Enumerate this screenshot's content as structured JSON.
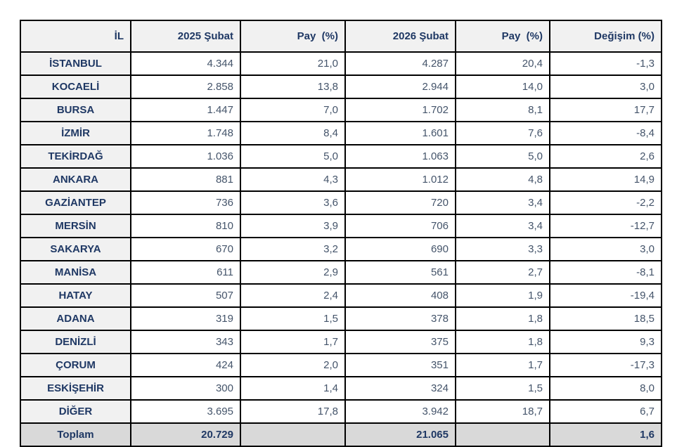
{
  "table": {
    "columns": [
      {
        "key": "il",
        "label": "İL"
      },
      {
        "key": "v2025",
        "label": "2025 Şubat"
      },
      {
        "key": "pay2025",
        "label": "Pay  (%)"
      },
      {
        "key": "v2026",
        "label": "2026 Şubat"
      },
      {
        "key": "pay2026",
        "label": "Pay  (%)"
      },
      {
        "key": "degisim",
        "label": "Değişim (%)"
      }
    ],
    "rows": [
      {
        "il": "İSTANBUL",
        "v2025": "4.344",
        "pay2025": "21,0",
        "v2026": "4.287",
        "pay2026": "20,4",
        "degisim": "-1,3"
      },
      {
        "il": "KOCAELİ",
        "v2025": "2.858",
        "pay2025": "13,8",
        "v2026": "2.944",
        "pay2026": "14,0",
        "degisim": "3,0"
      },
      {
        "il": "BURSA",
        "v2025": "1.447",
        "pay2025": "7,0",
        "v2026": "1.702",
        "pay2026": "8,1",
        "degisim": "17,7"
      },
      {
        "il": "İZMİR",
        "v2025": "1.748",
        "pay2025": "8,4",
        "v2026": "1.601",
        "pay2026": "7,6",
        "degisim": "-8,4"
      },
      {
        "il": "TEKİRDAĞ",
        "v2025": "1.036",
        "pay2025": "5,0",
        "v2026": "1.063",
        "pay2026": "5,0",
        "degisim": "2,6"
      },
      {
        "il": "ANKARA",
        "v2025": "881",
        "pay2025": "4,3",
        "v2026": "1.012",
        "pay2026": "4,8",
        "degisim": "14,9"
      },
      {
        "il": "GAZİANTEP",
        "v2025": "736",
        "pay2025": "3,6",
        "v2026": "720",
        "pay2026": "3,4",
        "degisim": "-2,2"
      },
      {
        "il": "MERSİN",
        "v2025": "810",
        "pay2025": "3,9",
        "v2026": "706",
        "pay2026": "3,4",
        "degisim": "-12,7"
      },
      {
        "il": "SAKARYA",
        "v2025": "670",
        "pay2025": "3,2",
        "v2026": "690",
        "pay2026": "3,3",
        "degisim": "3,0"
      },
      {
        "il": "MANİSA",
        "v2025": "611",
        "pay2025": "2,9",
        "v2026": "561",
        "pay2026": "2,7",
        "degisim": "-8,1"
      },
      {
        "il": "HATAY",
        "v2025": "507",
        "pay2025": "2,4",
        "v2026": "408",
        "pay2026": "1,9",
        "degisim": "-19,4"
      },
      {
        "il": "ADANA",
        "v2025": "319",
        "pay2025": "1,5",
        "v2026": "378",
        "pay2026": "1,8",
        "degisim": "18,5"
      },
      {
        "il": "DENİZLİ",
        "v2025": "343",
        "pay2025": "1,7",
        "v2026": "375",
        "pay2026": "1,8",
        "degisim": "9,3"
      },
      {
        "il": "ÇORUM",
        "v2025": "424",
        "pay2025": "2,0",
        "v2026": "351",
        "pay2026": "1,7",
        "degisim": "-17,3"
      },
      {
        "il": "ESKİŞEHİR",
        "v2025": "300",
        "pay2025": "1,4",
        "v2026": "324",
        "pay2026": "1,5",
        "degisim": "8,0"
      },
      {
        "il": "DİĞER",
        "v2025": "3.695",
        "pay2025": "17,8",
        "v2026": "3.942",
        "pay2026": "18,7",
        "degisim": "6,7"
      }
    ],
    "total_row": {
      "il": "Toplam",
      "v2025": "20.729",
      "pay2025": "",
      "v2026": "21.065",
      "pay2026": "",
      "degisim": "1,6"
    }
  },
  "colors": {
    "header_bg": "#f1f1f1",
    "il_column_bg": "#f1f1f1",
    "total_row_bg": "#d9d9d9",
    "border": "#000000",
    "label_text": "#1f3864",
    "value_text": "#44546a"
  }
}
